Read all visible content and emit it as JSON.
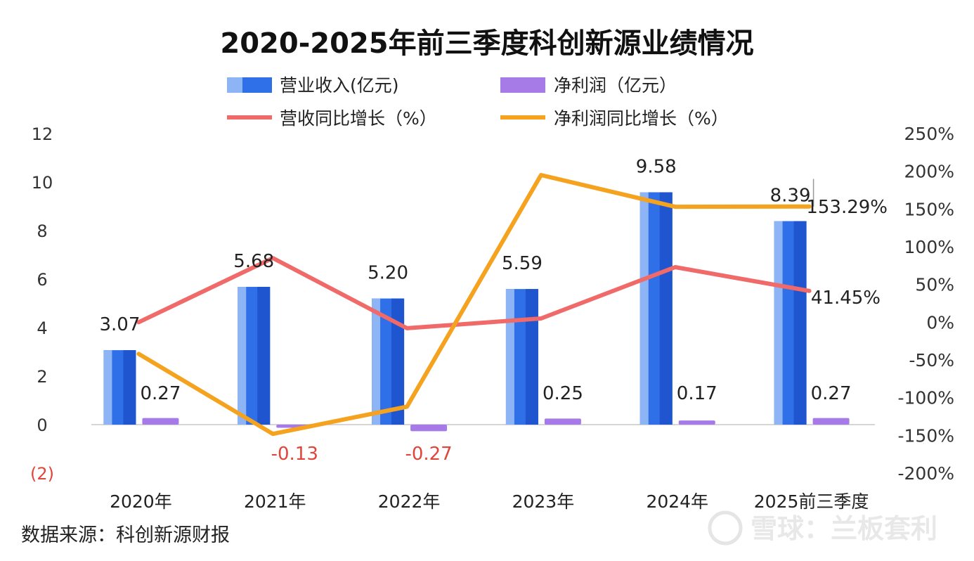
{
  "title": "2020-2025年前三季度科创新源业绩情况",
  "source": "数据来源：科创新源财报",
  "watermark": "雪球：兰板套利",
  "colors": {
    "revenue": "#2f6fe8",
    "revenue_light": "#8db4f5",
    "profit": "#a67be8",
    "revenue_yoy": "#f06a6a",
    "profit_yoy": "#f5a21e",
    "negative_label": "#e0453c"
  },
  "chart_data": {
    "type": "bar",
    "title": "2020-2025年前三季度科创新源业绩情况",
    "categories": [
      "2020年",
      "2021年",
      "2022年",
      "2023年",
      "2024年",
      "2025前三季度"
    ],
    "series": [
      {
        "name": "营业收入(亿元)",
        "type": "bar",
        "axis": "left",
        "values": [
          3.07,
          5.68,
          5.2,
          5.59,
          9.58,
          8.39
        ]
      },
      {
        "name": "净利润（亿元）",
        "type": "bar",
        "axis": "left",
        "values": [
          0.27,
          -0.13,
          -0.27,
          0.25,
          0.17,
          0.27
        ]
      },
      {
        "name": "营收同比增长（%）",
        "type": "line",
        "axis": "right",
        "values": [
          0,
          85,
          -8,
          5,
          73,
          41.45
        ]
      },
      {
        "name": "净利润同比增长（%）",
        "type": "line",
        "axis": "right",
        "values": [
          -42,
          -148,
          -112,
          195,
          153,
          153.29
        ]
      }
    ],
    "bar_labels": [
      "3.07",
      "5.68",
      "5.20",
      "5.59",
      "9.58",
      "8.39"
    ],
    "profit_labels": [
      "0.27",
      "-0.13",
      "-0.27",
      "0.25",
      "0.17",
      "0.27"
    ],
    "line_labels": {
      "revenue_yoy_last": "41.45%",
      "profit_yoy_last": "153.29%"
    },
    "left_axis": {
      "ylim": [
        -2,
        12
      ],
      "ticks": [
        "(2)",
        "0",
        "2",
        "4",
        "6",
        "8",
        "10",
        "12"
      ]
    },
    "right_axis": {
      "ylim": [
        -200,
        250
      ],
      "ticks": [
        "-200%",
        "-150%",
        "-100%",
        "-50%",
        "0%",
        "50%",
        "100%",
        "150%",
        "200%",
        "250%"
      ]
    },
    "legend": {
      "placement": "top-center"
    },
    "grid": false
  }
}
